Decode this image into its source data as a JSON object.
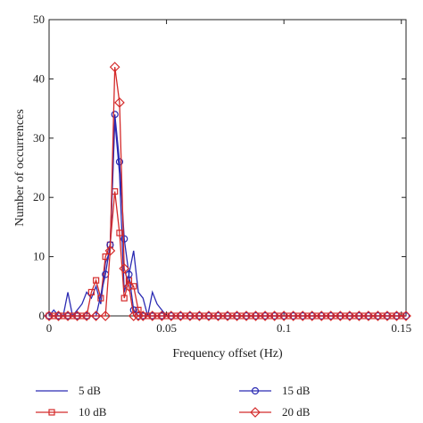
{
  "chart_data": {
    "type": "line",
    "xlabel": "Frequency offset (Hz)",
    "ylabel": "Number of occurrences",
    "xlim": [
      0,
      0.152
    ],
    "ylim": [
      0,
      50
    ],
    "xticks": [
      0,
      0.05,
      0.1,
      0.15
    ],
    "xtick_labels": [
      "0",
      "0.05",
      "0.1",
      "0.15"
    ],
    "yticks": [
      0,
      10,
      20,
      30,
      40,
      50
    ],
    "ytick_labels": [
      "0",
      "10",
      "20",
      "30",
      "40",
      "50"
    ],
    "grid": false,
    "legend_position": "bottom",
    "series": [
      {
        "name": "5 dB",
        "color": "#2b2bb3",
        "marker": "none",
        "x": [
          0,
          0.002,
          0.004,
          0.006,
          0.008,
          0.01,
          0.012,
          0.014,
          0.016,
          0.018,
          0.02,
          0.022,
          0.024,
          0.026,
          0.028,
          0.03,
          0.032,
          0.034,
          0.036,
          0.038,
          0.04,
          0.042,
          0.044,
          0.046,
          0.048,
          0.05,
          0.052,
          0.054,
          0.056,
          0.06,
          0.08,
          0.1,
          0.12,
          0.14,
          0.152
        ],
        "y": [
          0,
          1,
          0,
          0,
          4,
          0,
          1,
          2,
          4,
          3,
          5,
          2,
          9,
          11,
          33,
          24,
          4,
          7,
          11,
          4,
          3,
          0,
          4,
          2,
          1,
          0,
          0,
          0,
          0,
          0,
          0,
          0,
          0,
          0,
          0
        ]
      },
      {
        "name": "10 dB",
        "color": "#d42a2a",
        "marker": "square",
        "x": [
          0,
          0.002,
          0.004,
          0.006,
          0.008,
          0.01,
          0.012,
          0.014,
          0.016,
          0.018,
          0.02,
          0.022,
          0.024,
          0.026,
          0.028,
          0.03,
          0.032,
          0.034,
          0.036,
          0.038,
          0.04,
          0.042,
          0.044,
          0.046,
          0.048,
          0.05,
          0.054,
          0.058,
          0.062,
          0.066,
          0.07,
          0.074,
          0.078,
          0.082,
          0.086,
          0.09,
          0.094,
          0.098,
          0.102,
          0.106,
          0.11,
          0.114,
          0.118,
          0.122,
          0.126,
          0.13,
          0.134,
          0.138,
          0.142,
          0.146,
          0.15
        ],
        "y": [
          0,
          0,
          0,
          0,
          0,
          0,
          0,
          0,
          0,
          4,
          6,
          3,
          10,
          12,
          21,
          14,
          3,
          6,
          5,
          1,
          0,
          0,
          0,
          0,
          0,
          0,
          0,
          0,
          0,
          0,
          0,
          0,
          0,
          0,
          0,
          0,
          0,
          0,
          0,
          0,
          0,
          0,
          0,
          0,
          0,
          0,
          0,
          0,
          0,
          0,
          0
        ]
      },
      {
        "name": "15 dB",
        "color": "#2b2bb3",
        "marker": "circle",
        "x": [
          0,
          0.004,
          0.008,
          0.012,
          0.016,
          0.02,
          0.024,
          0.026,
          0.028,
          0.03,
          0.032,
          0.034,
          0.036,
          0.038,
          0.04,
          0.044,
          0.048,
          0.052,
          0.056,
          0.06,
          0.064,
          0.068,
          0.072,
          0.076,
          0.08,
          0.084,
          0.088,
          0.092,
          0.096,
          0.1,
          0.104,
          0.108,
          0.112,
          0.116,
          0.12,
          0.124,
          0.128,
          0.132,
          0.136,
          0.14,
          0.144,
          0.148,
          0.152
        ],
        "y": [
          0,
          0,
          0,
          0,
          0,
          0,
          7,
          12,
          34,
          26,
          13,
          7,
          1,
          0,
          0,
          0,
          0,
          0,
          0,
          0,
          0,
          0,
          0,
          0,
          0,
          0,
          0,
          0,
          0,
          0,
          0,
          0,
          0,
          0,
          0,
          0,
          0,
          0,
          0,
          0,
          0,
          0,
          0
        ]
      },
      {
        "name": "20 dB",
        "color": "#d42a2a",
        "marker": "diamond",
        "x": [
          0,
          0.004,
          0.008,
          0.012,
          0.016,
          0.02,
          0.024,
          0.026,
          0.028,
          0.03,
          0.032,
          0.034,
          0.036,
          0.038,
          0.04,
          0.044,
          0.048,
          0.052,
          0.056,
          0.06,
          0.064,
          0.068,
          0.072,
          0.076,
          0.08,
          0.084,
          0.088,
          0.092,
          0.096,
          0.1,
          0.104,
          0.108,
          0.112,
          0.116,
          0.12,
          0.124,
          0.128,
          0.132,
          0.136,
          0.14,
          0.144,
          0.148,
          0.152
        ],
        "y": [
          0,
          0,
          0,
          0,
          0,
          0,
          0,
          11,
          42,
          36,
          8,
          5,
          0,
          0,
          0,
          0,
          0,
          0,
          0,
          0,
          0,
          0,
          0,
          0,
          0,
          0,
          0,
          0,
          0,
          0,
          0,
          0,
          0,
          0,
          0,
          0,
          0,
          0,
          0,
          0,
          0,
          0,
          0
        ]
      }
    ]
  }
}
